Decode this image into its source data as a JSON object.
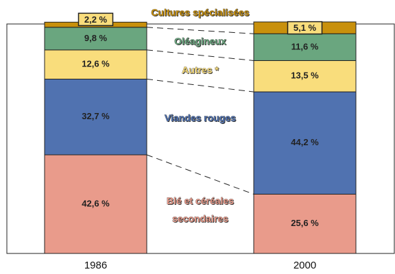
{
  "chart_data": {
    "type": "stacked_bar",
    "categories": [
      "1986",
      "2000"
    ],
    "ylim": [
      0,
      100
    ],
    "series": [
      {
        "name": "Blé et céréales secondaires",
        "color": "#e99b8b",
        "values": [
          42.6,
          25.6
        ],
        "value_labels": [
          "42,6 %",
          "25,6 %"
        ]
      },
      {
        "name": "Viandes rouges",
        "color": "#5072b0",
        "values": [
          32.7,
          44.2
        ],
        "value_labels": [
          "32,7 %",
          "44,2 %"
        ]
      },
      {
        "name": "Autres *",
        "color": "#f9dd7c",
        "values": [
          12.6,
          13.5
        ],
        "value_labels": [
          "12,6 %",
          "13,5 %"
        ]
      },
      {
        "name": "Oléagineux",
        "color": "#6aa67f",
        "values": [
          9.8,
          11.6
        ],
        "value_labels": [
          "9,8 %",
          "11,6 %"
        ]
      },
      {
        "name": "Cultures spécialisées",
        "color": "#c8900c",
        "values": [
          2.2,
          5.1
        ],
        "value_labels": [
          "2,2 %",
          "5,1 %"
        ]
      }
    ]
  }
}
